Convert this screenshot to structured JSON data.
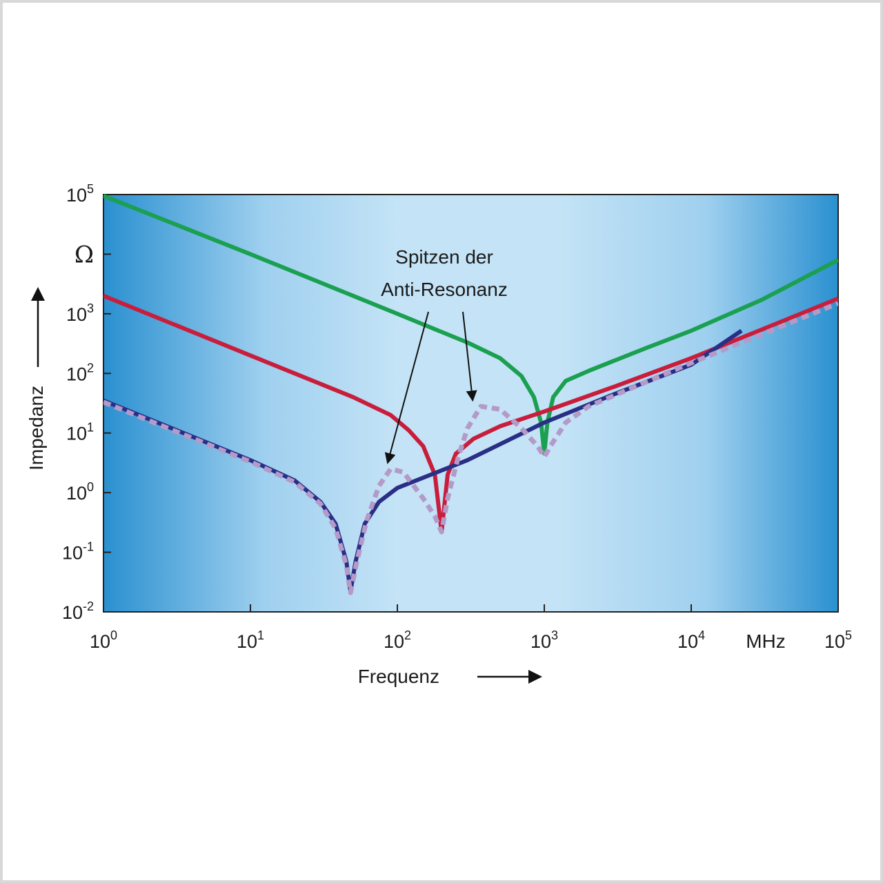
{
  "chart_data": {
    "type": "line",
    "title": "",
    "xlabel": "Frequenz",
    "ylabel": "Impedanz",
    "x_unit": "MHz",
    "y_unit": "Ω",
    "x_scale": "log",
    "y_scale": "log",
    "xlim": [
      1,
      100000
    ],
    "ylim": [
      0.01,
      100000
    ],
    "x_ticks": [
      {
        "base": "10",
        "exp": "0"
      },
      {
        "base": "10",
        "exp": "1"
      },
      {
        "base": "10",
        "exp": "2"
      },
      {
        "base": "10",
        "exp": "3"
      },
      {
        "base": "10",
        "exp": "4"
      },
      {
        "base": "10",
        "exp": "5"
      }
    ],
    "y_ticks": [
      {
        "base": "10",
        "exp": "-2"
      },
      {
        "base": "10",
        "exp": "-1"
      },
      {
        "base": "10",
        "exp": "0"
      },
      {
        "base": "10",
        "exp": "1"
      },
      {
        "base": "10",
        "exp": "2"
      },
      {
        "base": "10",
        "exp": "3"
      },
      {
        "base": "10",
        "exp": "5"
      }
    ],
    "annotation": {
      "lines": [
        "Spitzen der",
        "Anti-Resonanz"
      ],
      "targets": [
        [
          90,
          2.5
        ],
        [
          370,
          28
        ]
      ]
    },
    "series": [
      {
        "color": "#1aa050",
        "style": "solid",
        "points": [
          [
            1,
            95000
          ],
          [
            10,
            10000
          ],
          [
            100,
            1000
          ],
          [
            300,
            330
          ],
          [
            500,
            180
          ],
          [
            700,
            90
          ],
          [
            850,
            40
          ],
          [
            950,
            15
          ],
          [
            1000,
            4.5
          ],
          [
            1050,
            15
          ],
          [
            1150,
            40
          ],
          [
            1400,
            75
          ],
          [
            2000,
            110
          ],
          [
            5000,
            270
          ],
          [
            10000,
            520
          ],
          [
            30000,
            1700
          ],
          [
            100000,
            8000
          ]
        ]
      },
      {
        "color": "#c81e3c",
        "style": "solid",
        "points": [
          [
            1,
            2000
          ],
          [
            10,
            200
          ],
          [
            50,
            40
          ],
          [
            90,
            20
          ],
          [
            120,
            11
          ],
          [
            150,
            6
          ],
          [
            180,
            2
          ],
          [
            200,
            0.22
          ],
          [
            220,
            2
          ],
          [
            250,
            4.5
          ],
          [
            330,
            8
          ],
          [
            500,
            13
          ],
          [
            1000,
            23
          ],
          [
            3000,
            60
          ],
          [
            10000,
            180
          ],
          [
            100000,
            1800
          ]
        ]
      },
      {
        "color": "#2a2f86",
        "style": "solid",
        "points": [
          [
            1,
            35
          ],
          [
            10,
            3.5
          ],
          [
            20,
            1.6
          ],
          [
            30,
            0.7
          ],
          [
            38,
            0.3
          ],
          [
            45,
            0.07
          ],
          [
            48,
            0.022
          ],
          [
            52,
            0.07
          ],
          [
            60,
            0.3
          ],
          [
            75,
            0.7
          ],
          [
            100,
            1.2
          ],
          [
            300,
            3.5
          ],
          [
            1000,
            15
          ],
          [
            3000,
            45
          ],
          [
            10000,
            140
          ],
          [
            22000,
            520
          ]
        ]
      },
      {
        "color": "#b49ac8",
        "style": "dashed",
        "points": [
          [
            1,
            33
          ],
          [
            10,
            3.3
          ],
          [
            20,
            1.5
          ],
          [
            30,
            0.65
          ],
          [
            38,
            0.25
          ],
          [
            45,
            0.06
          ],
          [
            48,
            0.021
          ],
          [
            53,
            0.07
          ],
          [
            62,
            0.35
          ],
          [
            75,
            1.3
          ],
          [
            90,
            2.5
          ],
          [
            110,
            2.2
          ],
          [
            150,
            0.8
          ],
          [
            180,
            0.4
          ],
          [
            200,
            0.22
          ],
          [
            220,
            0.8
          ],
          [
            260,
            4
          ],
          [
            300,
            12
          ],
          [
            370,
            28
          ],
          [
            500,
            25
          ],
          [
            700,
            12
          ],
          [
            900,
            6
          ],
          [
            1000,
            4
          ],
          [
            1100,
            6
          ],
          [
            1400,
            15
          ],
          [
            2000,
            28
          ],
          [
            10000,
            150
          ],
          [
            100000,
            1500
          ]
        ]
      }
    ]
  }
}
